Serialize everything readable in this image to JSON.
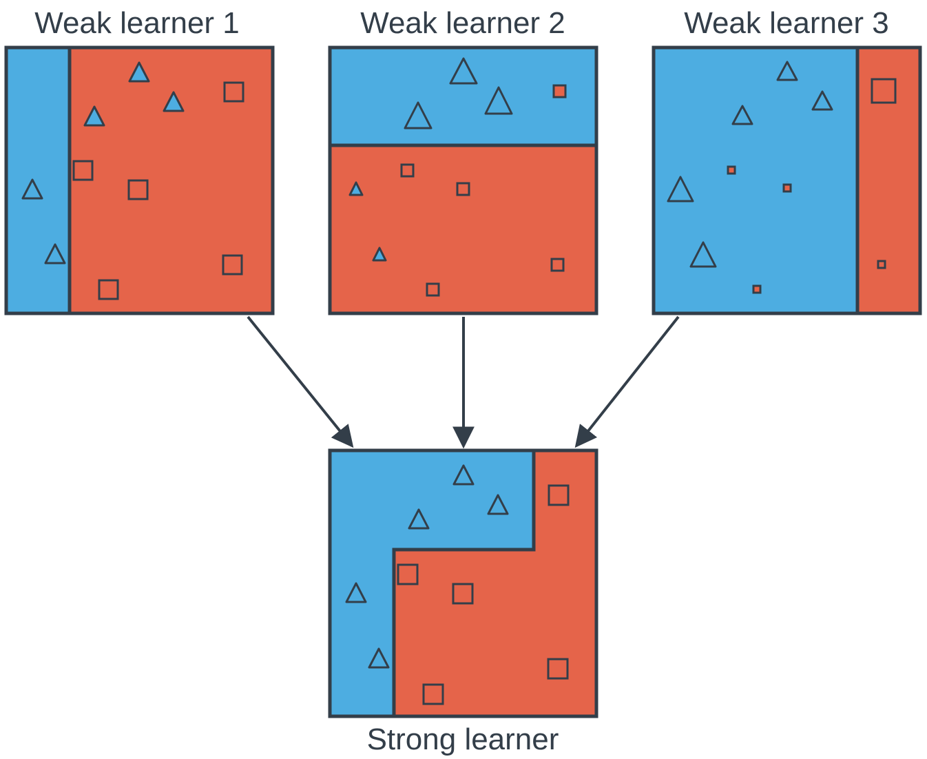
{
  "colors": {
    "blue": "#4dade1",
    "red": "#e5644a",
    "outline": "#333e49"
  },
  "titles": {
    "learner1": "Weak learner 1",
    "learner2": "Weak learner 2",
    "learner3": "Weak learner 3",
    "strong": "Strong learner"
  },
  "icons": {
    "class_a": "triangle-icon",
    "class_b": "square-icon",
    "arrow": "arrow-down-icon"
  }
}
